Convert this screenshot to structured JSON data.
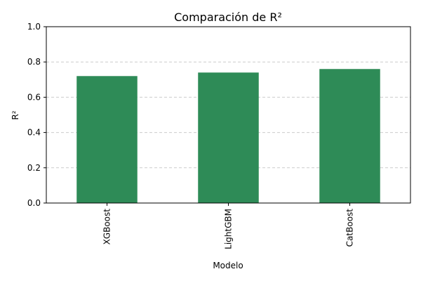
{
  "chart_data": {
    "type": "bar",
    "title": "Comparación de R²",
    "xlabel": "Modelo",
    "ylabel": "R²",
    "categories": [
      "XGBoost",
      "LightGBM",
      "CatBoost"
    ],
    "values": [
      0.72,
      0.74,
      0.76
    ],
    "ylim": [
      0,
      1.0
    ],
    "yticks": [
      "0.0",
      "0.2",
      "0.4",
      "0.6",
      "0.8",
      "1.0"
    ],
    "grid": "y-dashed",
    "bar_color": "#2e8b57",
    "grid_color": "#cccccc"
  }
}
